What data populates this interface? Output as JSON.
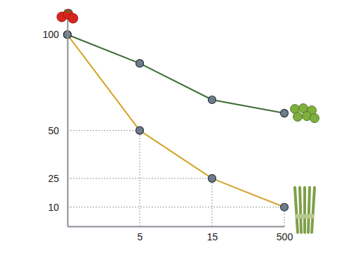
{
  "chart_data": {
    "type": "line",
    "categories": [
      null,
      "5",
      "15",
      "500"
    ],
    "series": [
      {
        "color": "#3e6b37",
        "values": [
          100,
          85,
          66,
          59
        ]
      },
      {
        "color": "#d4a52a",
        "values": [
          100,
          50,
          25,
          10
        ]
      }
    ],
    "ylim": [
      0,
      110
    ],
    "yticks": [
      10,
      25,
      50,
      100
    ],
    "marker": "circle"
  }
}
